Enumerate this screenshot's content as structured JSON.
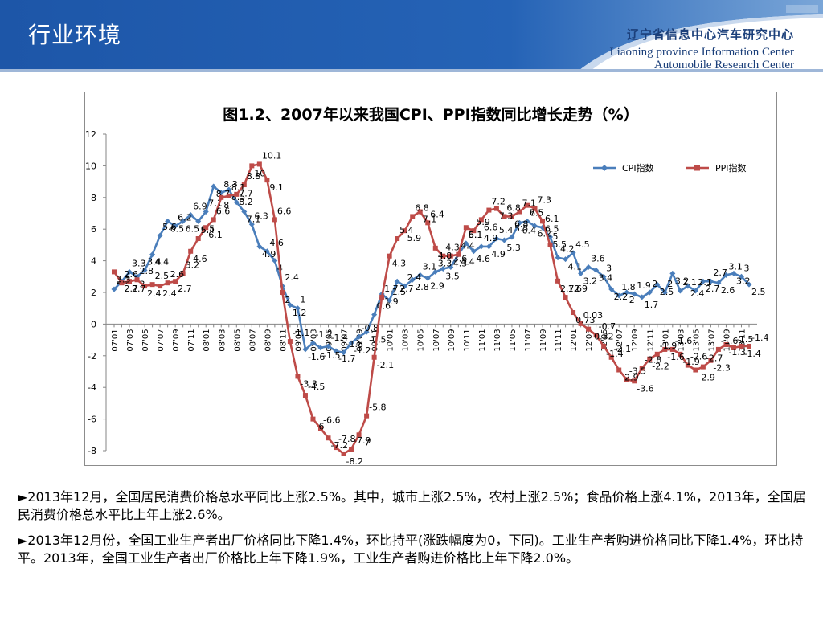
{
  "slide": {
    "title": "行业环境",
    "org_cn_a": "辽宁省信息中心",
    "org_cn_b": "汽车研究中心",
    "org_en_1": "Liaoning province Information Center",
    "org_en_2": "Automobile Research Center"
  },
  "colors": {
    "header": "#1d56a8",
    "cpi": "#4a7ebb",
    "ppi": "#be4b48"
  },
  "notes": [
    "►2013年12月，全国居民消费价格总水平同比上涨2.5%。其中，城市上涨2.5%，农村上涨2.5%；食品价格上涨4.1%，2013年，全国居民消费价格总水平比上年上涨2.6%。",
    "►2013年12月份，全国工业生产者出厂价格同比下降1.4%，环比持平(涨跌幅度为0，下同)。工业生产者购进价格同比下降1.4%，环比持平。2013年，全国工业生产者出厂价格比上年下降1.9%，工业生产者购进价格比上年下降2.0%。"
  ],
  "chart_data": {
    "type": "line",
    "title": "图1.2、2007年以来我国CPI、PPI指数同比增长走势（%）",
    "xlabel": "",
    "ylabel": "",
    "ylim": [
      -8,
      12
    ],
    "yticks": [
      12,
      10,
      8,
      6,
      4,
      2,
      0,
      -2,
      -4,
      -6,
      -8
    ],
    "grid": false,
    "legend_position": "top-right",
    "x": [
      "07'01",
      "07'02",
      "07'03",
      "07'04",
      "07'05",
      "07'06",
      "07'07",
      "07'08",
      "07'09",
      "07'10",
      "07'11",
      "07'12",
      "08'01",
      "08'02",
      "08'03",
      "08'04",
      "08'05",
      "08'06",
      "08'07",
      "08'08",
      "08'09",
      "08'10",
      "08'11",
      "08'12",
      "09'01",
      "09'02",
      "09'03",
      "09'04",
      "09'05",
      "09'06",
      "09'07",
      "09'08",
      "09'09",
      "09'10",
      "09'11",
      "09'12",
      "10'01",
      "10'02",
      "10'03",
      "10'04",
      "10'05",
      "10'06",
      "10'07",
      "10'08",
      "10'09",
      "10'10",
      "10'11",
      "10'12",
      "11'01",
      "11'02",
      "11'03",
      "11'04",
      "11'05",
      "11'06",
      "11'07",
      "11'08",
      "11'09",
      "11'10",
      "11'11",
      "11'12",
      "12'01",
      "12'02",
      "12'03",
      "12'04",
      "12'05",
      "12'06",
      "12'07",
      "12'08",
      "12'09",
      "12'10",
      "12'11",
      "12'12",
      "13'01",
      "13'02",
      "13'03",
      "13'04",
      "13'05",
      "13'06",
      "13'07",
      "13'08",
      "13'09",
      "13'10",
      "13'11",
      "13'12"
    ],
    "xtick_labels": [
      "07'01",
      "07'03",
      "07'05",
      "07'07",
      "07'09",
      "07'11",
      "08'01",
      "08'03",
      "08'05",
      "08'07",
      "08'09",
      "08'11",
      "09'01",
      "09'03",
      "09'05",
      "09'07",
      "09'09",
      "09'11",
      "10'01",
      "10'03",
      "10'05",
      "10'07",
      "10'09",
      "10'11",
      "11'01",
      "11'03",
      "11'05",
      "11'07",
      "11'09",
      "11'11",
      "12'01",
      "12'03",
      "12'05",
      "12'07",
      "12'09",
      "12'11",
      "13'01",
      "13'03",
      "13'05",
      "13'07",
      "13'09",
      "13'11"
    ],
    "series": [
      {
        "name": "CPI指数",
        "color": "#4a7ebb",
        "marker": "diamond",
        "values": [
          2.2,
          2.7,
          3.3,
          3.0,
          3.4,
          4.4,
          5.6,
          6.5,
          6.2,
          6.5,
          6.9,
          6.5,
          7.1,
          8.7,
          8.3,
          8.5,
          7.7,
          7.1,
          6.3,
          4.9,
          4.6,
          4.0,
          2.4,
          1.2,
          1.0,
          -1.6,
          -1.2,
          -1.5,
          -1.4,
          -1.7,
          -1.8,
          -1.2,
          -0.8,
          -0.5,
          0.6,
          1.9,
          1.5,
          2.7,
          2.4,
          2.8,
          3.1,
          2.9,
          3.3,
          3.5,
          3.6,
          4.4,
          5.1,
          4.6,
          4.9,
          4.9,
          5.4,
          5.3,
          5.5,
          6.4,
          6.5,
          6.2,
          6.1,
          5.5,
          4.2,
          4.1,
          4.5,
          3.2,
          3.6,
          3.4,
          3.0,
          2.2,
          1.8,
          2.0,
          1.9,
          1.7,
          2.0,
          2.5,
          2.0,
          3.2,
          2.1,
          2.4,
          2.1,
          2.7,
          2.7,
          2.6,
          3.1,
          3.2,
          3.0,
          2.5
        ],
        "labels": [
          "2.2",
          "2.7",
          "3.3",
          "3",
          "3.4",
          "4.4",
          "5.6",
          "6.5",
          "6.2",
          "6.5",
          "6.9",
          "6.5",
          "7.1",
          "8.7",
          "8.3",
          "8.5",
          "7.7",
          "7.1",
          "6.3",
          "4.9",
          "4.6",
          "4",
          "2.4",
          "1.2",
          "1",
          "-1.6",
          "-1.2",
          "-1.5",
          "-1.4",
          "-1.7",
          "-1.8",
          "-1.2",
          "-0.8",
          "-0.5",
          "0.6",
          "1.9",
          "1.5",
          "2.7",
          "2.4",
          "2.8",
          "3.1",
          "2.9",
          "3.3",
          "3.5",
          "3.6",
          "4.4",
          "5.1",
          "4.6",
          "4.9",
          "4.9",
          "5.4",
          "5.3",
          "5.5",
          "6.4",
          "6.5",
          "6.2",
          "6.1",
          "5.5",
          "4.2",
          "4.1",
          "4.5",
          "3.2",
          "3.6",
          "3.4",
          "3",
          "2.2",
          "1.8",
          "2",
          "1.9",
          "1.7",
          "2",
          "2.5",
          "2",
          "3.2",
          "2.1",
          "2.4",
          "2.1",
          "2.7",
          "2.7",
          "2.6",
          "3.1",
          "3.2",
          "3",
          "2.5"
        ]
      },
      {
        "name": "PPI指数",
        "color": "#be4b48",
        "marker": "square",
        "values": [
          3.3,
          2.6,
          2.7,
          2.8,
          2.4,
          2.5,
          2.4,
          2.6,
          2.7,
          3.2,
          4.6,
          5.4,
          6.1,
          6.6,
          8.0,
          8.1,
          8.2,
          8.8,
          10.0,
          10.1,
          9.1,
          6.6,
          2.0,
          -1.1,
          -3.3,
          -4.5,
          -6.0,
          -6.6,
          -7.2,
          -7.8,
          -8.2,
          -7.9,
          -7.0,
          -5.8,
          -2.1,
          1.7,
          4.3,
          5.4,
          5.9,
          6.8,
          7.1,
          6.4,
          4.8,
          4.3,
          4.3,
          4.4,
          6.1,
          5.9,
          6.6,
          7.2,
          7.3,
          6.8,
          6.8,
          7.1,
          7.5,
          7.3,
          6.5,
          5.0,
          2.72,
          1.69,
          0.73,
          0.03,
          -0.32,
          -0.7,
          -1.4,
          -2.1,
          -2.9,
          -3.5,
          -3.6,
          -2.8,
          -2.2,
          -1.9,
          -1.6,
          -1.6,
          -1.9,
          -2.6,
          -2.9,
          -2.7,
          -2.3,
          -1.6,
          -1.3,
          -1.5,
          -1.4,
          -1.4
        ],
        "labels": [
          "3.3",
          "2.6",
          "2.7",
          "2.8",
          "2.4",
          "2.5",
          "2.4",
          "2.6",
          "2.7",
          "3.2",
          "4.6",
          "5.4",
          "6.1",
          "6.6",
          "8",
          "8.1",
          "8.2",
          "8.8",
          "10",
          "10.1",
          "9.1",
          "6.6",
          "2",
          "-1.1",
          "-3.3",
          "-4.5",
          "-6",
          "-6.6",
          "-7.2",
          "-7.8",
          "-8.2",
          "-7.9",
          "-7",
          "-5.8",
          "-2.1",
          "1.7",
          "4.3",
          "5.4",
          "5.9",
          "6.8",
          "7.1",
          "6.4",
          "4.8",
          "4.3",
          "4.3",
          "4.4",
          "6.1",
          "5.9",
          "6.6",
          "7.2",
          "7.3",
          "6.8",
          "6.8",
          "7.1",
          "7.5",
          "7.3",
          "6.5",
          "5",
          "2.72",
          "1.69",
          "0.73",
          "0.03",
          "-0.32",
          "-0.7",
          "-1.4",
          "-2.1",
          "-2.9",
          "-3.5",
          "-3.6",
          "-2.8",
          "-2.2",
          "-1.9",
          "-1.6",
          "-1.6",
          "-1.9",
          "-2.6",
          "-2.9",
          "-2.7",
          "-2.3",
          "-1.6",
          "-1.3",
          "-1.5",
          "-1.4",
          "-1.4"
        ]
      }
    ]
  }
}
